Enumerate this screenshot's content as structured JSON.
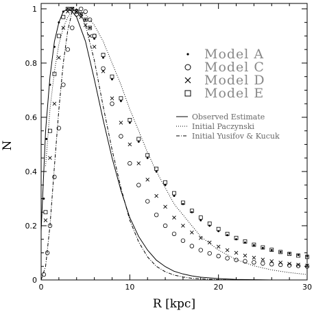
{
  "chart_data": {
    "type": "line",
    "xlabel": "R [kpc]",
    "ylabel": "N",
    "xlim": [
      0,
      30
    ],
    "ylim": [
      0,
      1.02
    ],
    "xticks": [
      0,
      10,
      20,
      30
    ],
    "yticks": [
      0,
      0.2,
      0.4,
      0.6,
      0.8,
      1
    ],
    "ytick_labels": [
      "0",
      "0.2",
      "0.4",
      "0.6",
      "0.8",
      "1"
    ],
    "legend_position": "right",
    "marker_legend": [
      {
        "marker": "dot",
        "label": "Model A"
      },
      {
        "marker": "circle",
        "label": "Model C"
      },
      {
        "marker": "cross",
        "label": "Model D"
      },
      {
        "marker": "square",
        "label": "Model E"
      }
    ],
    "line_legend": [
      {
        "style": "solid",
        "label": "Observed Estimate"
      },
      {
        "style": "dotted",
        "label": "Initial Paczynski"
      },
      {
        "style": "dashdot",
        "label": "Initial Yusifov & Kucuk"
      }
    ],
    "series": [
      {
        "name": "Observed Estimate",
        "style": "solid",
        "x": [
          0,
          0.5,
          1,
          1.5,
          2,
          2.5,
          3,
          3.5,
          4,
          5,
          6,
          7,
          8,
          9,
          10,
          11,
          12,
          13,
          14,
          15,
          16,
          17,
          18,
          20,
          22,
          24,
          26
        ],
        "y": [
          0.18,
          0.55,
          0.75,
          0.88,
          0.95,
          0.99,
          1.0,
          0.99,
          0.97,
          0.88,
          0.74,
          0.59,
          0.45,
          0.33,
          0.23,
          0.16,
          0.11,
          0.073,
          0.049,
          0.032,
          0.022,
          0.015,
          0.01,
          0.005,
          0.002,
          0.001,
          0
        ]
      },
      {
        "name": "Initial Paczynski",
        "style": "dotted",
        "x": [
          0.5,
          1,
          1.5,
          2,
          2.5,
          3,
          3.5,
          4,
          4.5,
          5,
          6,
          7,
          8,
          9,
          10,
          11,
          12,
          13,
          14,
          15,
          16,
          18,
          20,
          22,
          24,
          26,
          28,
          30
        ],
        "y": [
          0.42,
          0.63,
          0.77,
          0.87,
          0.93,
          0.97,
          0.99,
          1.0,
          0.99,
          0.98,
          0.94,
          0.88,
          0.8,
          0.72,
          0.63,
          0.55,
          0.47,
          0.4,
          0.34,
          0.28,
          0.24,
          0.16,
          0.11,
          0.075,
          0.052,
          0.037,
          0.027,
          0.02
        ]
      },
      {
        "name": "Initial Yusifov & Kucuk",
        "style": "dashdot",
        "x": [
          0,
          0.5,
          1,
          1.5,
          2,
          2.5,
          3,
          3.5,
          4,
          4.5,
          5,
          6,
          7,
          8,
          9,
          10,
          11,
          12,
          13,
          14,
          15,
          16,
          17,
          18,
          20,
          22,
          24,
          26
        ],
        "y": [
          0,
          0.05,
          0.2,
          0.42,
          0.63,
          0.8,
          0.92,
          0.99,
          1.0,
          0.98,
          0.94,
          0.81,
          0.64,
          0.48,
          0.34,
          0.22,
          0.14,
          0.085,
          0.05,
          0.03,
          0.018,
          0.011,
          0.006,
          0.004,
          0.001,
          0,
          0,
          0
        ]
      },
      {
        "name": "Model A",
        "marker": "dot",
        "x": [
          0.3,
          0.6,
          1,
          1.5,
          2,
          2.5,
          3,
          3.5,
          4,
          4.5,
          5,
          5.5,
          6,
          7,
          8,
          9,
          10,
          11,
          12,
          13,
          14,
          15,
          16,
          17,
          18,
          19,
          20,
          21,
          22,
          23,
          24,
          25,
          26,
          27,
          28,
          29,
          30
        ],
        "y": [
          0.3,
          0.52,
          0.72,
          0.86,
          0.95,
          0.99,
          1.0,
          1.0,
          0.99,
          0.98,
          0.96,
          0.93,
          0.89,
          0.82,
          0.74,
          0.66,
          0.58,
          0.51,
          0.45,
          0.4,
          0.35,
          0.31,
          0.28,
          0.25,
          0.22,
          0.2,
          0.18,
          0.165,
          0.15,
          0.138,
          0.128,
          0.118,
          0.11,
          0.103,
          0.097,
          0.092,
          0.088
        ]
      },
      {
        "name": "Model C",
        "marker": "circle",
        "x": [
          0.3,
          0.7,
          1,
          1.5,
          2,
          2.5,
          3,
          3.5,
          4,
          4.5,
          5,
          5.5,
          6,
          7,
          8,
          9,
          10,
          11,
          12,
          13,
          14,
          15,
          16,
          17,
          18,
          19,
          20,
          21,
          22,
          23,
          24,
          25,
          26,
          27,
          28,
          29,
          30
        ],
        "y": [
          0.02,
          0.1,
          0.2,
          0.38,
          0.56,
          0.72,
          0.85,
          0.93,
          0.98,
          1.0,
          0.99,
          0.96,
          0.9,
          0.78,
          0.65,
          0.53,
          0.43,
          0.35,
          0.29,
          0.24,
          0.2,
          0.17,
          0.145,
          0.125,
          0.11,
          0.098,
          0.088,
          0.08,
          0.074,
          0.069,
          0.065,
          0.061,
          0.058,
          0.056,
          0.054,
          0.052,
          0.05
        ]
      },
      {
        "name": "Model D",
        "marker": "cross",
        "x": [
          0.5,
          1,
          1.5,
          2,
          2.5,
          3,
          3.5,
          4,
          4.5,
          5,
          5.5,
          6,
          7,
          8,
          9,
          10,
          11,
          12,
          13,
          14,
          15,
          16,
          17,
          18,
          19,
          20,
          21,
          22,
          23,
          24,
          25,
          26,
          27,
          28,
          29,
          30
        ],
        "y": [
          0.22,
          0.45,
          0.65,
          0.82,
          0.93,
          0.99,
          1.0,
          0.99,
          0.97,
          0.94,
          0.9,
          0.86,
          0.77,
          0.67,
          0.58,
          0.5,
          0.43,
          0.37,
          0.31,
          0.27,
          0.23,
          0.2,
          0.175,
          0.155,
          0.138,
          0.123,
          0.11,
          0.1,
          0.09,
          0.082,
          0.075,
          0.069,
          0.064,
          0.06,
          0.056,
          0.053
        ]
      },
      {
        "name": "Model E",
        "marker": "square",
        "x": [
          0.5,
          1,
          1.5,
          2,
          2.5,
          3,
          3.5,
          4,
          4.5,
          5,
          5.5,
          6,
          7,
          8,
          9,
          10,
          11,
          12,
          13,
          14,
          15,
          16,
          17,
          18,
          19,
          20,
          21,
          22,
          23,
          24,
          25,
          26,
          27,
          28,
          29,
          30
        ],
        "y": [
          0.25,
          0.55,
          0.76,
          0.9,
          0.97,
          1.0,
          1.0,
          0.99,
          0.98,
          0.96,
          0.93,
          0.9,
          0.83,
          0.75,
          0.67,
          0.59,
          0.52,
          0.46,
          0.41,
          0.36,
          0.32,
          0.285,
          0.255,
          0.23,
          0.208,
          0.188,
          0.17,
          0.155,
          0.142,
          0.13,
          0.12,
          0.111,
          0.103,
          0.096,
          0.09,
          0.085
        ]
      }
    ]
  }
}
